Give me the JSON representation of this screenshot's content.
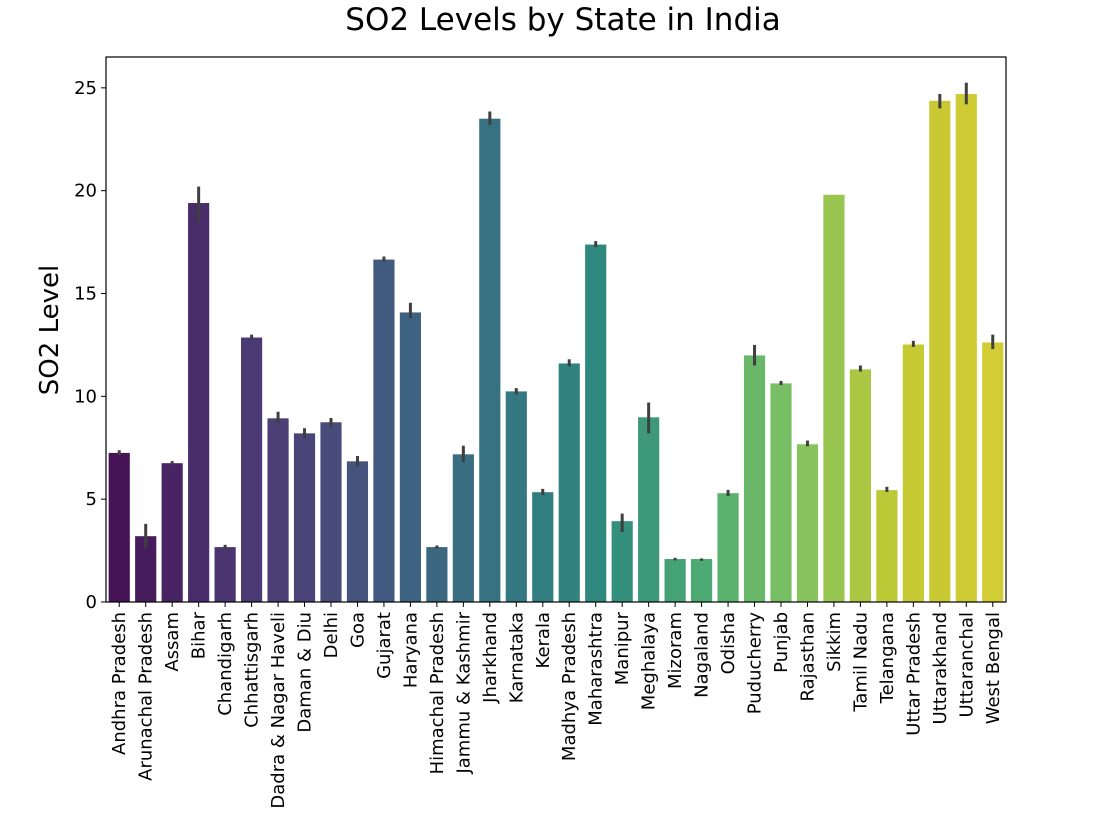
{
  "chart_data": {
    "type": "bar",
    "title": "SO2 Levels by State in India",
    "xlabel": "",
    "ylabel": "SO2 Level",
    "ylim": [
      0,
      26.5
    ],
    "yticks": [
      0,
      5,
      10,
      15,
      20,
      25
    ],
    "grid": false,
    "palette_anchors": [
      "#451356",
      "#4a3370",
      "#4b4679",
      "#3e6281",
      "#347681",
      "#2f8a7e",
      "#4daa73",
      "#82c262",
      "#c2c932",
      "#d2cc35"
    ],
    "categories": [
      "Andhra Pradesh",
      "Arunachal Pradesh",
      "Assam",
      "Bihar",
      "Chandigarh",
      "Chhattisgarh",
      "Dadra & Nagar Haveli",
      "Daman & Diu",
      "Delhi",
      "Goa",
      "Gujarat",
      "Haryana",
      "Himachal Pradesh",
      "Jammu & Kashmir",
      "Jharkhand",
      "Karnataka",
      "Kerala",
      "Madhya Pradesh",
      "Maharashtra",
      "Manipur",
      "Meghalaya",
      "Mizoram",
      "Nagaland",
      "Odisha",
      "Puducherry",
      "Punjab",
      "Rajasthan",
      "Sikkim",
      "Tamil Nadu",
      "Telangana",
      "Uttar Pradesh",
      "Uttarakhand",
      "Uttaranchal",
      "West Bengal"
    ],
    "values": [
      7.25,
      3.2,
      6.75,
      19.4,
      2.67,
      12.86,
      8.93,
      8.2,
      8.74,
      6.84,
      16.65,
      14.08,
      2.67,
      7.18,
      23.5,
      10.24,
      5.34,
      11.6,
      17.38,
      3.93,
      8.98,
      2.09,
      2.09,
      5.29,
      11.99,
      10.63,
      7.67,
      19.8,
      11.31,
      5.44,
      12.52,
      24.37,
      24.7,
      12.62
    ],
    "ci": [
      [
        7.15,
        7.38
      ],
      [
        2.6,
        3.8
      ],
      [
        6.68,
        6.85
      ],
      [
        18.5,
        20.2
      ],
      [
        2.55,
        2.78
      ],
      [
        12.75,
        13.0
      ],
      [
        8.7,
        9.25
      ],
      [
        7.95,
        8.45
      ],
      [
        8.5,
        8.95
      ],
      [
        6.6,
        7.1
      ],
      [
        16.55,
        16.8
      ],
      [
        13.8,
        14.55
      ],
      [
        2.6,
        2.75
      ],
      [
        6.8,
        7.6
      ],
      [
        23.2,
        23.85
      ],
      [
        10.1,
        10.4
      ],
      [
        5.2,
        5.5
      ],
      [
        11.45,
        11.8
      ],
      [
        17.25,
        17.55
      ],
      [
        3.4,
        4.3
      ],
      [
        8.2,
        9.7
      ],
      [
        2.02,
        2.15
      ],
      [
        2.0,
        2.12
      ],
      [
        5.15,
        5.45
      ],
      [
        11.5,
        12.5
      ],
      [
        10.55,
        10.75
      ],
      [
        7.57,
        7.85
      ],
      null,
      [
        11.2,
        11.5
      ],
      [
        5.35,
        5.6
      ],
      [
        12.4,
        12.7
      ],
      [
        24.0,
        24.7
      ],
      [
        24.2,
        25.25
      ],
      [
        12.3,
        13.0
      ]
    ]
  }
}
